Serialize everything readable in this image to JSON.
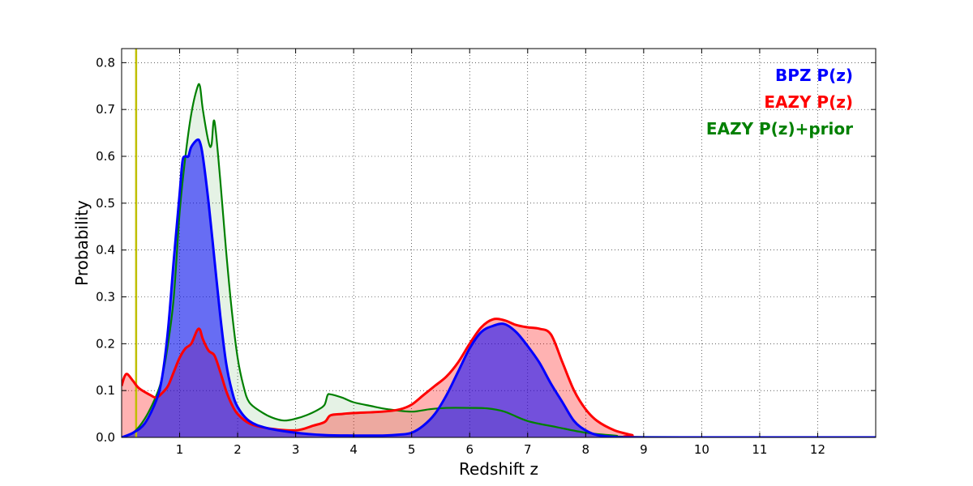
{
  "chart_data": {
    "type": "area",
    "xlabel": "Redshift z",
    "ylabel": "Probability",
    "xlim": [
      0,
      13
    ],
    "ylim": [
      0,
      0.83
    ],
    "x_ticks": [
      1,
      2,
      3,
      4,
      5,
      6,
      7,
      8,
      9,
      10,
      11,
      12
    ],
    "y_ticks": [
      0.0,
      0.1,
      0.2,
      0.3,
      0.4,
      0.5,
      0.6,
      0.7,
      0.8
    ],
    "x_tick_labels": [
      "1",
      "2",
      "3",
      "4",
      "5",
      "6",
      "7",
      "8",
      "9",
      "10",
      "11",
      "12"
    ],
    "y_tick_labels": [
      "0.0",
      "0.1",
      "0.2",
      "0.3",
      "0.4",
      "0.5",
      "0.6",
      "0.7",
      "0.8"
    ],
    "grid": true,
    "legend_placement": "top-right",
    "vertical_line": {
      "x": 0.25,
      "color": "#bfbf00"
    },
    "series": [
      {
        "name": "BPZ P(z)",
        "color": "#0000ff",
        "fill": "#0000ff",
        "fill_opacity": 0.55,
        "points": [
          [
            0,
            0
          ],
          [
            0.2,
            0.01
          ],
          [
            0.4,
            0.03
          ],
          [
            0.6,
            0.08
          ],
          [
            0.7,
            0.13
          ],
          [
            0.8,
            0.23
          ],
          [
            0.9,
            0.38
          ],
          [
            1.0,
            0.52
          ],
          [
            1.05,
            0.59
          ],
          [
            1.1,
            0.6
          ],
          [
            1.15,
            0.6
          ],
          [
            1.2,
            0.62
          ],
          [
            1.3,
            0.635
          ],
          [
            1.35,
            0.63
          ],
          [
            1.4,
            0.6
          ],
          [
            1.5,
            0.5
          ],
          [
            1.6,
            0.38
          ],
          [
            1.7,
            0.26
          ],
          [
            1.8,
            0.16
          ],
          [
            1.9,
            0.1
          ],
          [
            2.0,
            0.065
          ],
          [
            2.2,
            0.035
          ],
          [
            2.5,
            0.02
          ],
          [
            3.0,
            0.01
          ],
          [
            3.5,
            0.005
          ],
          [
            4.0,
            0.004
          ],
          [
            4.5,
            0.004
          ],
          [
            4.8,
            0.006
          ],
          [
            5.0,
            0.01
          ],
          [
            5.2,
            0.025
          ],
          [
            5.4,
            0.05
          ],
          [
            5.6,
            0.09
          ],
          [
            5.8,
            0.14
          ],
          [
            6.0,
            0.19
          ],
          [
            6.2,
            0.225
          ],
          [
            6.4,
            0.238
          ],
          [
            6.6,
            0.242
          ],
          [
            6.8,
            0.225
          ],
          [
            7.0,
            0.195
          ],
          [
            7.2,
            0.16
          ],
          [
            7.4,
            0.115
          ],
          [
            7.6,
            0.075
          ],
          [
            7.8,
            0.035
          ],
          [
            8.0,
            0.015
          ],
          [
            8.2,
            0.005
          ],
          [
            8.5,
            0.001
          ],
          [
            9.0,
            0
          ],
          [
            13.0,
            0
          ]
        ]
      },
      {
        "name": "EAZY P(z)",
        "color": "#ff0000",
        "fill": "#ff0000",
        "fill_opacity": 0.3,
        "points": [
          [
            0,
            0.11
          ],
          [
            0.05,
            0.13
          ],
          [
            0.1,
            0.135
          ],
          [
            0.2,
            0.12
          ],
          [
            0.3,
            0.105
          ],
          [
            0.5,
            0.09
          ],
          [
            0.6,
            0.085
          ],
          [
            0.7,
            0.095
          ],
          [
            0.8,
            0.11
          ],
          [
            0.9,
            0.14
          ],
          [
            1.0,
            0.17
          ],
          [
            1.1,
            0.19
          ],
          [
            1.2,
            0.2
          ],
          [
            1.3,
            0.228
          ],
          [
            1.35,
            0.23
          ],
          [
            1.4,
            0.21
          ],
          [
            1.5,
            0.185
          ],
          [
            1.6,
            0.175
          ],
          [
            1.7,
            0.14
          ],
          [
            1.8,
            0.1
          ],
          [
            1.9,
            0.07
          ],
          [
            2.0,
            0.05
          ],
          [
            2.2,
            0.03
          ],
          [
            2.5,
            0.02
          ],
          [
            3.0,
            0.015
          ],
          [
            3.3,
            0.025
          ],
          [
            3.5,
            0.033
          ],
          [
            3.6,
            0.047
          ],
          [
            3.8,
            0.05
          ],
          [
            4.0,
            0.052
          ],
          [
            4.5,
            0.055
          ],
          [
            4.8,
            0.06
          ],
          [
            5.0,
            0.07
          ],
          [
            5.2,
            0.09
          ],
          [
            5.4,
            0.11
          ],
          [
            5.6,
            0.13
          ],
          [
            5.8,
            0.16
          ],
          [
            6.0,
            0.2
          ],
          [
            6.2,
            0.235
          ],
          [
            6.4,
            0.252
          ],
          [
            6.6,
            0.25
          ],
          [
            6.8,
            0.24
          ],
          [
            7.0,
            0.235
          ],
          [
            7.2,
            0.232
          ],
          [
            7.4,
            0.22
          ],
          [
            7.6,
            0.16
          ],
          [
            7.8,
            0.1
          ],
          [
            8.0,
            0.06
          ],
          [
            8.2,
            0.035
          ],
          [
            8.5,
            0.015
          ],
          [
            8.8,
            0.005
          ],
          [
            9.0,
            0
          ],
          [
            13.0,
            0
          ]
        ]
      },
      {
        "name": "EAZY P(z)+prior",
        "color": "#008000",
        "fill": "#008000",
        "fill_opacity": 0.1,
        "points": [
          [
            0,
            0
          ],
          [
            0.2,
            0.01
          ],
          [
            0.4,
            0.04
          ],
          [
            0.6,
            0.09
          ],
          [
            0.7,
            0.13
          ],
          [
            0.8,
            0.2
          ],
          [
            0.9,
            0.3
          ],
          [
            1.0,
            0.48
          ],
          [
            1.1,
            0.6
          ],
          [
            1.2,
            0.69
          ],
          [
            1.3,
            0.745
          ],
          [
            1.35,
            0.75
          ],
          [
            1.4,
            0.7
          ],
          [
            1.5,
            0.63
          ],
          [
            1.55,
            0.625
          ],
          [
            1.6,
            0.675
          ],
          [
            1.7,
            0.55
          ],
          [
            1.8,
            0.4
          ],
          [
            1.9,
            0.27
          ],
          [
            2.0,
            0.17
          ],
          [
            2.1,
            0.11
          ],
          [
            2.2,
            0.075
          ],
          [
            2.4,
            0.055
          ],
          [
            2.6,
            0.042
          ],
          [
            2.8,
            0.036
          ],
          [
            3.0,
            0.04
          ],
          [
            3.2,
            0.048
          ],
          [
            3.4,
            0.06
          ],
          [
            3.5,
            0.07
          ],
          [
            3.55,
            0.09
          ],
          [
            3.6,
            0.092
          ],
          [
            3.8,
            0.085
          ],
          [
            4.0,
            0.075
          ],
          [
            4.3,
            0.067
          ],
          [
            4.6,
            0.06
          ],
          [
            5.0,
            0.055
          ],
          [
            5.3,
            0.06
          ],
          [
            5.6,
            0.063
          ],
          [
            6.0,
            0.063
          ],
          [
            6.3,
            0.062
          ],
          [
            6.6,
            0.055
          ],
          [
            7.0,
            0.035
          ],
          [
            7.5,
            0.022
          ],
          [
            8.0,
            0.01
          ],
          [
            8.5,
            0.004
          ],
          [
            9.0,
            0.001
          ],
          [
            13.0,
            0
          ]
        ]
      }
    ]
  }
}
